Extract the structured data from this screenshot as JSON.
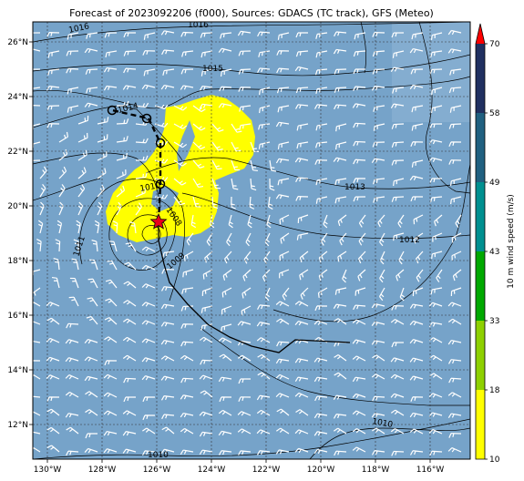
{
  "title": "Forecast of 2023092206 (f000), Sources: GDACS (TC track), GFS (Meteo)",
  "map": {
    "lon_labels": [
      "130°W",
      "128°W",
      "126°W",
      "124°W",
      "122°W",
      "120°W",
      "118°W",
      "116°W"
    ],
    "lat_labels": [
      "26°N",
      "24°N",
      "22°N",
      "20°N",
      "18°N",
      "16°N",
      "14°N",
      "12°N"
    ],
    "isobar_labels": [
      "1016",
      "1016",
      "1015",
      "1014",
      "1013",
      "1012",
      "1011",
      "1010",
      "1009",
      "1008",
      "1010",
      "1010"
    ],
    "colors": {
      "ocean": "#76a3c9",
      "rain": "#ffff00",
      "track": "#000000",
      "storm_marker": "#e8001c"
    },
    "storm_marker_icon": "red-star-icon"
  },
  "colorbar": {
    "label": "10 m wind speed (m/s)",
    "ticks": [
      "10",
      "18",
      "33",
      "43",
      "49",
      "58",
      "70"
    ],
    "colors": [
      "#ffff00",
      "#8ed000",
      "#00a800",
      "#009090",
      "#206080",
      "#203060",
      "#ff0000"
    ]
  }
}
